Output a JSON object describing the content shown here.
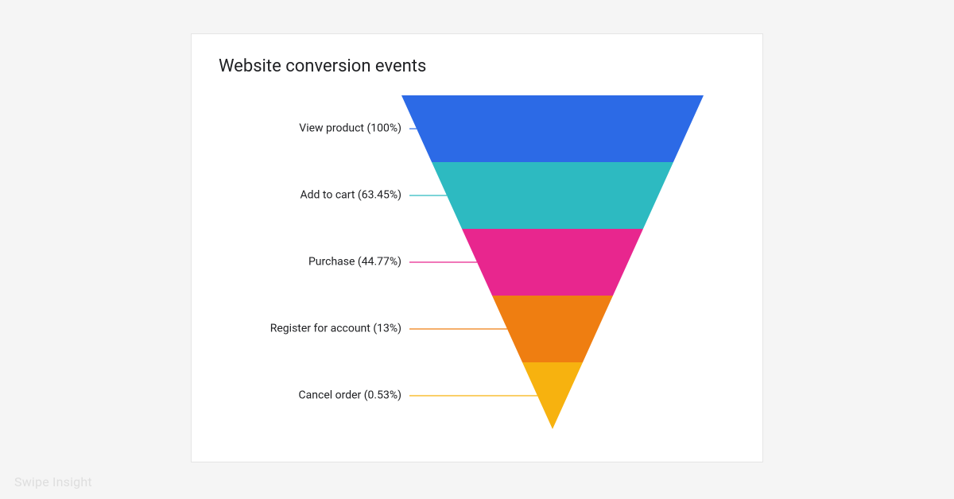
{
  "page": {
    "background_color": "#f5f5f5",
    "watermark": "Swipe Insight"
  },
  "card": {
    "background_color": "#ffffff",
    "border_color": "#e5e5e5"
  },
  "chart": {
    "type": "funnel",
    "title": "Website conversion events",
    "title_fontsize": 22,
    "title_color": "#202124",
    "label_fontsize": 14,
    "label_color": "#202124",
    "funnel_top_width": 380,
    "funnel_height": 420,
    "segments": [
      {
        "label": "View product (100%)",
        "value": 100,
        "color": "#2c6ae6",
        "height_ratio": 0.2
      },
      {
        "label": "Add to cart (63.45%)",
        "value": 63.45,
        "color": "#2dbac1",
        "height_ratio": 0.2
      },
      {
        "label": "Purchase (44.77%)",
        "value": 44.77,
        "color": "#e8268e",
        "height_ratio": 0.2
      },
      {
        "label": "Register for account (13%)",
        "value": 13,
        "color": "#ef7e11",
        "height_ratio": 0.2
      },
      {
        "label": "Cancel order (0.53%)",
        "value": 0.53,
        "color": "#f7b20f",
        "height_ratio": 0.2
      }
    ]
  }
}
